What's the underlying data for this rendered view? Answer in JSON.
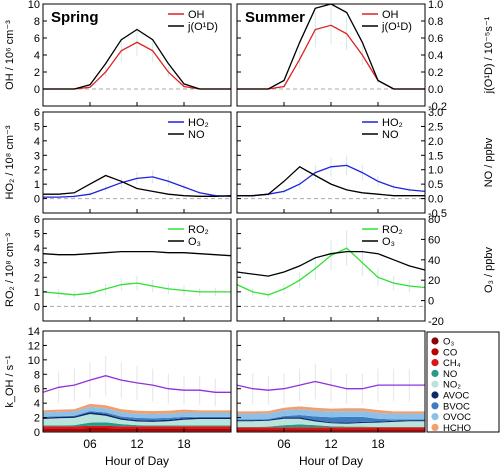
{
  "chart_data": {
    "type": "line",
    "x_axis": {
      "label": "Hour of Day",
      "range": [
        0,
        24
      ],
      "ticks": [
        "06",
        "12",
        "18"
      ],
      "tick_values": [
        6,
        12,
        18
      ]
    },
    "columns": [
      "Spring",
      "Summer"
    ],
    "rows": [
      {
        "id": "oh",
        "ylabel_left": "OH / 10⁶ cm⁻³",
        "ylabel_right": "j(O¹D) / 10⁻⁵s⁻¹",
        "left_range": [
          -2,
          10
        ],
        "left_ticks": [
          "0",
          "2",
          "4",
          "6",
          "8",
          "10"
        ],
        "left_tick_values": [
          0,
          2,
          4,
          6,
          8,
          10
        ],
        "right_range": [
          -0.2,
          1
        ],
        "right_ticks": [
          "1.0",
          "0.8",
          "0.6",
          "0.4",
          "0.2",
          "0.0",
          "-0.2"
        ],
        "right_tick_values": [
          1.0,
          0.8,
          0.6,
          0.4,
          0.2,
          0.0,
          -0.2
        ],
        "legend": [
          "OH",
          "j(O¹D)"
        ],
        "series_colors": [
          "#e02020",
          "#000000"
        ],
        "error_bars": true
      },
      {
        "id": "ho2",
        "ylabel_left": "HO₂ / 10⁸ cm⁻³",
        "ylabel_right": "NO / ppbv",
        "left_range": [
          -1,
          6
        ],
        "left_ticks": [
          "0",
          "1",
          "2",
          "3",
          "4",
          "5",
          "6"
        ],
        "left_tick_values": [
          0,
          1,
          2,
          3,
          4,
          5,
          6
        ],
        "right_range": [
          -0.5,
          3
        ],
        "right_ticks": [
          "3.0",
          "2.5",
          "2.0",
          "1.5",
          "1.0",
          "0.5",
          "0.0",
          "-0.5"
        ],
        "right_tick_values": [
          3.0,
          2.5,
          2.0,
          1.5,
          1.0,
          0.5,
          0.0,
          -0.5
        ],
        "legend": [
          "HO₂",
          "NO"
        ],
        "series_colors": [
          "#2020e0",
          "#000000"
        ],
        "error_bars": true
      },
      {
        "id": "ro2",
        "ylabel_left": "RO₂ / 10⁸ cm⁻³",
        "ylabel_right": "O₃ / ppbv",
        "left_range": [
          -1,
          6
        ],
        "left_ticks": [
          "0",
          "1",
          "2",
          "3",
          "4",
          "5",
          "6"
        ],
        "left_tick_values": [
          0,
          1,
          2,
          3,
          4,
          5,
          6
        ],
        "right_range": [
          -20,
          80
        ],
        "right_ticks": [
          "80",
          "60",
          "40",
          "20",
          "0",
          "-20"
        ],
        "right_tick_values": [
          80,
          60,
          40,
          20,
          0,
          -20
        ],
        "legend": [
          "RO₂",
          "O₃"
        ],
        "series_colors": [
          "#30e030",
          "#000000"
        ],
        "error_bars": true
      },
      {
        "id": "koh",
        "ylabel_left": "k_OH / s⁻¹",
        "left_range": [
          0,
          14
        ],
        "left_ticks": [
          "0",
          "2",
          "4",
          "6",
          "8",
          "10",
          "12",
          "14"
        ],
        "left_tick_values": [
          0,
          2,
          4,
          6,
          8,
          10,
          12,
          14
        ],
        "stack_legend": [
          "O₃",
          "CO",
          "CH₄",
          "NO",
          "NO₂",
          "AVOC",
          "BVOC",
          "OVOC",
          "HCHO"
        ],
        "stack_colors": [
          "#8b0000",
          "#b80000",
          "#d81818",
          "#2a9a8a",
          "#b8e4dc",
          "#0c2a6a",
          "#3e7cc0",
          "#8cc0e8",
          "#f0a070"
        ],
        "measured_color": "#9030e0",
        "error_bars": true
      }
    ],
    "hours": [
      0,
      2,
      4,
      6,
      8,
      10,
      12,
      14,
      16,
      18,
      20,
      22,
      24
    ],
    "spring": {
      "oh": [
        0,
        0,
        0,
        0.2,
        2.0,
        4.5,
        5.5,
        4.5,
        2.0,
        0.3,
        0,
        0,
        0
      ],
      "jo1d": [
        0,
        0,
        0,
        0.05,
        0.3,
        0.58,
        0.7,
        0.58,
        0.3,
        0.06,
        0,
        0,
        0
      ],
      "ho2": [
        0.1,
        0.1,
        0.15,
        0.3,
        0.7,
        1.1,
        1.4,
        1.5,
        1.2,
        0.8,
        0.4,
        0.2,
        0.15
      ],
      "no": [
        0.15,
        0.15,
        0.2,
        0.5,
        0.8,
        0.6,
        0.35,
        0.25,
        0.15,
        0.1,
        0.08,
        0.08,
        0.1
      ],
      "ro2": [
        1.0,
        0.9,
        0.8,
        0.9,
        1.2,
        1.5,
        1.6,
        1.4,
        1.2,
        1.1,
        1.0,
        1.0,
        1.0
      ],
      "o3": [
        46,
        45,
        45,
        46,
        47,
        48,
        48,
        48,
        47,
        47,
        46,
        45,
        44
      ],
      "koh_measured": [
        5.5,
        6.2,
        6.5,
        7.2,
        7.8,
        7.2,
        6.8,
        6.5,
        6.0,
        5.8,
        5.8,
        5.5,
        5.5
      ],
      "koh_stack": {
        "O3": [
          0.1,
          0.1,
          0.1,
          0.1,
          0.1,
          0.1,
          0.1,
          0.1,
          0.1,
          0.1,
          0.1,
          0.1,
          0.1
        ],
        "CO": [
          0.4,
          0.4,
          0.4,
          0.45,
          0.45,
          0.4,
          0.4,
          0.4,
          0.4,
          0.4,
          0.4,
          0.4,
          0.4
        ],
        "CH4": [
          0.3,
          0.3,
          0.3,
          0.3,
          0.3,
          0.3,
          0.3,
          0.3,
          0.3,
          0.3,
          0.3,
          0.3,
          0.3
        ],
        "NO": [
          0.1,
          0.1,
          0.15,
          0.45,
          0.5,
          0.3,
          0.15,
          0.1,
          0.1,
          0.1,
          0.1,
          0.1,
          0.1
        ],
        "NO2": [
          0.9,
          1.0,
          1.0,
          1.2,
          0.9,
          0.6,
          0.5,
          0.5,
          0.6,
          0.8,
          0.9,
          0.9,
          0.9
        ],
        "AVOC": [
          0.2,
          0.2,
          0.2,
          0.25,
          0.25,
          0.2,
          0.2,
          0.2,
          0.2,
          0.2,
          0.2,
          0.2,
          0.2
        ],
        "BVOC": [
          0.1,
          0.1,
          0.1,
          0.15,
          0.2,
          0.25,
          0.3,
          0.3,
          0.25,
          0.2,
          0.1,
          0.1,
          0.1
        ],
        "OVOC": [
          0.6,
          0.6,
          0.6,
          0.6,
          0.6,
          0.6,
          0.6,
          0.6,
          0.6,
          0.6,
          0.6,
          0.6,
          0.6
        ],
        "HCHO": [
          0.3,
          0.3,
          0.3,
          0.4,
          0.4,
          0.4,
          0.4,
          0.4,
          0.4,
          0.4,
          0.3,
          0.3,
          0.3
        ]
      }
    },
    "summer": {
      "oh": [
        0,
        0,
        0,
        0.3,
        3.5,
        7.0,
        7.5,
        6.5,
        4.0,
        1.0,
        0,
        0,
        0
      ],
      "jo1d": [
        0,
        0,
        0,
        0.1,
        0.55,
        0.95,
        1.0,
        0.9,
        0.55,
        0.1,
        0,
        0,
        0
      ],
      "ho2": [
        0.2,
        0.2,
        0.3,
        0.5,
        1.0,
        1.8,
        2.2,
        2.3,
        1.8,
        1.2,
        0.8,
        0.6,
        0.5
      ],
      "no": [
        0.1,
        0.1,
        0.15,
        0.6,
        1.1,
        0.8,
        0.5,
        0.3,
        0.2,
        0.15,
        0.1,
        0.1,
        0.1
      ],
      "ro2": [
        1.5,
        1.0,
        0.8,
        1.2,
        1.8,
        2.6,
        3.5,
        4.0,
        3.0,
        2.0,
        1.6,
        1.4,
        1.3
      ],
      "o3": [
        28,
        26,
        24,
        28,
        34,
        42,
        46,
        48,
        48,
        46,
        40,
        34,
        30
      ],
      "koh_measured": [
        6.5,
        6.0,
        5.8,
        6.0,
        6.5,
        7.0,
        6.5,
        6.0,
        6.0,
        6.5,
        6.5,
        6.5,
        6.5
      ],
      "koh_stack": {
        "O3": [
          0.1,
          0.1,
          0.1,
          0.1,
          0.1,
          0.1,
          0.1,
          0.1,
          0.1,
          0.1,
          0.1,
          0.1,
          0.1
        ],
        "CO": [
          0.3,
          0.3,
          0.3,
          0.3,
          0.3,
          0.3,
          0.3,
          0.3,
          0.3,
          0.3,
          0.3,
          0.3,
          0.3
        ],
        "CH4": [
          0.25,
          0.25,
          0.25,
          0.25,
          0.25,
          0.25,
          0.25,
          0.25,
          0.25,
          0.25,
          0.25,
          0.25,
          0.25
        ],
        "NO": [
          0.05,
          0.05,
          0.1,
          0.3,
          0.4,
          0.3,
          0.15,
          0.1,
          0.1,
          0.05,
          0.05,
          0.05,
          0.05
        ],
        "NO2": [
          0.8,
          0.8,
          0.8,
          0.9,
          0.8,
          0.5,
          0.4,
          0.4,
          0.5,
          0.6,
          0.7,
          0.8,
          0.8
        ],
        "AVOC": [
          0.15,
          0.15,
          0.15,
          0.2,
          0.2,
          0.2,
          0.15,
          0.15,
          0.15,
          0.15,
          0.15,
          0.15,
          0.15
        ],
        "BVOC": [
          0.1,
          0.1,
          0.1,
          0.15,
          0.3,
          0.5,
          0.7,
          0.8,
          0.7,
          0.4,
          0.2,
          0.1,
          0.1
        ],
        "OVOC": [
          0.8,
          0.8,
          0.8,
          0.8,
          0.8,
          0.8,
          0.8,
          0.8,
          0.8,
          0.8,
          0.8,
          0.8,
          0.8
        ],
        "HCHO": [
          0.3,
          0.3,
          0.3,
          0.35,
          0.4,
          0.4,
          0.4,
          0.4,
          0.4,
          0.4,
          0.3,
          0.3,
          0.3
        ]
      }
    }
  }
}
